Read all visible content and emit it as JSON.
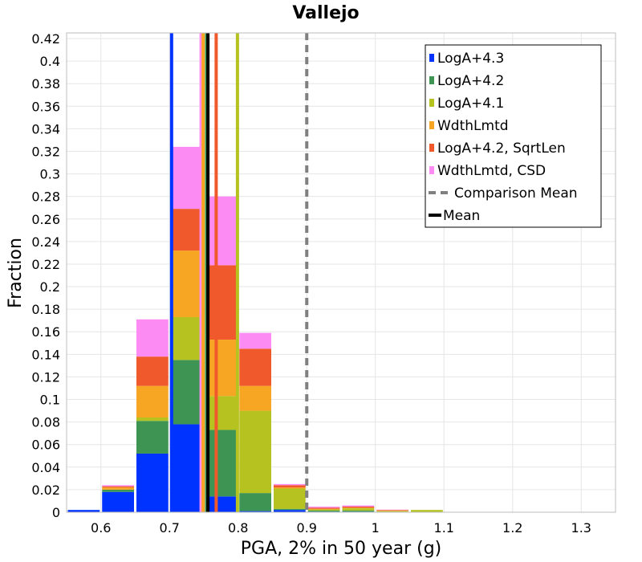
{
  "chart_data": {
    "type": "bar",
    "stacked": true,
    "title": "Vallejo",
    "xlabel": "PGA, 2% in 50 year (g)",
    "ylabel": "Fraction",
    "xlim": [
      0.55,
      1.35
    ],
    "ylim": [
      0,
      0.425
    ],
    "xticks": [
      0.6,
      0.7,
      0.8,
      0.9,
      1.0,
      1.1,
      1.2,
      1.3
    ],
    "xtick_labels": [
      "0.6",
      "0.7",
      "0.8",
      "0.9",
      "1",
      "1.1",
      "1.2",
      "1.3"
    ],
    "yticks": [
      0,
      0.02,
      0.04,
      0.06,
      0.08,
      0.1,
      0.12,
      0.14,
      0.16,
      0.18,
      0.2,
      0.22,
      0.24,
      0.26,
      0.28,
      0.3,
      0.32,
      0.34,
      0.36,
      0.38,
      0.4,
      0.42
    ],
    "ytick_labels": [
      "0",
      "0.02",
      "0.04",
      "0.06",
      "0.08",
      "0.1",
      "0.12",
      "0.14",
      "0.16",
      "0.18",
      "0.2",
      "0.22",
      "0.24",
      "0.26",
      "0.28",
      "0.3",
      "0.32",
      "0.34",
      "0.36",
      "0.38",
      "0.4",
      "0.42"
    ],
    "bin_width": 0.05,
    "bin_centers": [
      0.575,
      0.625,
      0.675,
      0.725,
      0.775,
      0.825,
      0.875,
      0.925,
      0.975,
      1.025,
      1.075,
      1.125
    ],
    "series": [
      {
        "name": "LogA+4.3",
        "color": "#0033ff",
        "values": [
          0.002,
          0.018,
          0.052,
          0.078,
          0.014,
          0.001,
          0.002,
          0.0005,
          0.0005,
          0.0002,
          0,
          0
        ]
      },
      {
        "name": "LogA+4.2",
        "color": "#3d9453",
        "values": [
          0,
          0.002,
          0.029,
          0.057,
          0.059,
          0.016,
          0.001,
          0.001,
          0.001,
          0.0003,
          0,
          0
        ]
      },
      {
        "name": "LogA+4.1",
        "color": "#b5c220",
        "values": [
          0,
          0,
          0.003,
          0.038,
          0.03,
          0.073,
          0.018,
          0.001,
          0.002,
          0.0005,
          0.002,
          0.0003
        ]
      },
      {
        "name": "WdthLmtd",
        "color": "#f7a623",
        "values": [
          0,
          0.002,
          0.028,
          0.059,
          0.05,
          0.022,
          0.001,
          0.0005,
          0.0005,
          0.0005,
          0,
          0
        ]
      },
      {
        "name": "LogA+4.2, SqrtLen",
        "color": "#f0592b",
        "values": [
          0,
          0.001,
          0.026,
          0.037,
          0.066,
          0.033,
          0.002,
          0.001,
          0.001,
          0.0005,
          0,
          0
        ]
      },
      {
        "name": "WdthLmtd, CSD",
        "color": "#fc8cf4",
        "values": [
          0,
          0.001,
          0.033,
          0.055,
          0.061,
          0.014,
          0.001,
          0.001,
          0.001,
          0.0003,
          0,
          0
        ]
      }
    ],
    "mean_lines": [
      {
        "name": "LogA+4.3",
        "color": "#0033ff",
        "x": 0.703
      },
      {
        "name": "WdthLmtd, CSD",
        "color": "#fc8cf4",
        "x": 0.746
      },
      {
        "name": "WdthLmtd",
        "color": "#f7a623",
        "x": 0.749
      },
      {
        "name": "LogA+4.2",
        "color": "#3d9453",
        "x": 0.754
      },
      {
        "name": "LogA+4.2, SqrtLen",
        "color": "#f0592b",
        "x": 0.768
      },
      {
        "name": "LogA+4.1",
        "color": "#b5c220",
        "x": 0.799
      }
    ],
    "mean": {
      "name": "Mean",
      "color": "#000000",
      "x": 0.756
    },
    "comparison_mean": {
      "name": "Comparison Mean",
      "color": "#808080",
      "x": 0.9
    },
    "legend": {
      "position": "top-right",
      "entries": [
        "LogA+4.3",
        "LogA+4.2",
        "LogA+4.1",
        "WdthLmtd",
        "LogA+4.2, SqrtLen",
        "WdthLmtd, CSD",
        "Comparison Mean",
        "Mean"
      ]
    }
  }
}
